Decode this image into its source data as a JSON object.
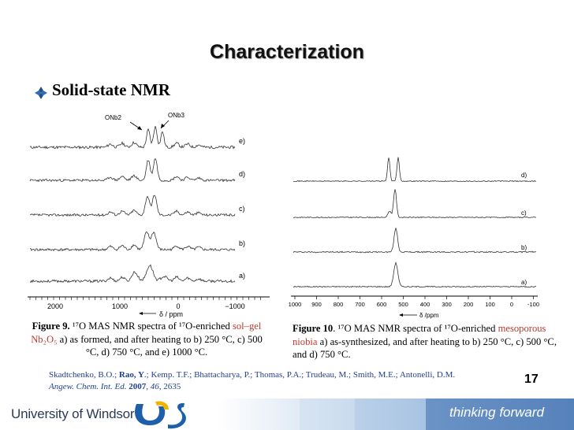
{
  "slide": {
    "title": "Characterization",
    "bullet": "Solid-state NMR",
    "page_number": "17"
  },
  "figure9": {
    "peak_labels": [
      "ONb2",
      "ONb3"
    ],
    "trace_labels": [
      "e)",
      "d)",
      "c)",
      "b)",
      "a)"
    ],
    "x_ticks": [
      "2000",
      "1000",
      "0",
      "−1000"
    ],
    "x_label": "δ / ppm",
    "caption": {
      "prefix_bold": "Figure 9.",
      "text1": " ¹⁷O MAS NMR spectra of ¹⁷O-enriched",
      "highlight": "sol–gel Nb₂O₅",
      "text2": " a) as formed, and after heating to b) 250 °C, c) 500 °C, d) 750 °C, and e) 1000 °C."
    }
  },
  "figure10": {
    "trace_labels": [
      "d)",
      "c)",
      "b)",
      "a)"
    ],
    "x_ticks": [
      "1000",
      "900",
      "800",
      "700",
      "600",
      "500",
      "400",
      "300",
      "200",
      "100",
      "0",
      "-100"
    ],
    "x_label": "δ /ppm",
    "caption": {
      "prefix_bold": "Figure 10",
      "text1": ". ¹⁷O MAS NMR spectra of ¹⁷O-enriched ",
      "highlight": "mesoporous niobia",
      "text2": " a) as-synthesized, and after heating to b) 250 °C, c) 500 °C, and d) 750 °C."
    }
  },
  "reference": {
    "authors_before": "Skadtchenko, B.O.; ",
    "author_bold": "Rao, Y",
    "authors_after": ".; Kemp. T.F.; Bhattacharya, P.; Thomas, P.A.; Trudeau, M.; Smith, M.E.; Antonelli, D.M.",
    "journal": "Angew. Chem. Int. Ed.",
    "year": "2007",
    "volume": "46",
    "pages": ", 2635"
  },
  "footer": {
    "university": "University of Windsor",
    "slogan": "thinking forward"
  },
  "colors": {
    "highlight": "#c0392b",
    "reference": "#1f3f8f",
    "footer_band": "#4a78b5",
    "logo_blue": "#1d5fa8",
    "logo_gold": "#f0b400"
  }
}
